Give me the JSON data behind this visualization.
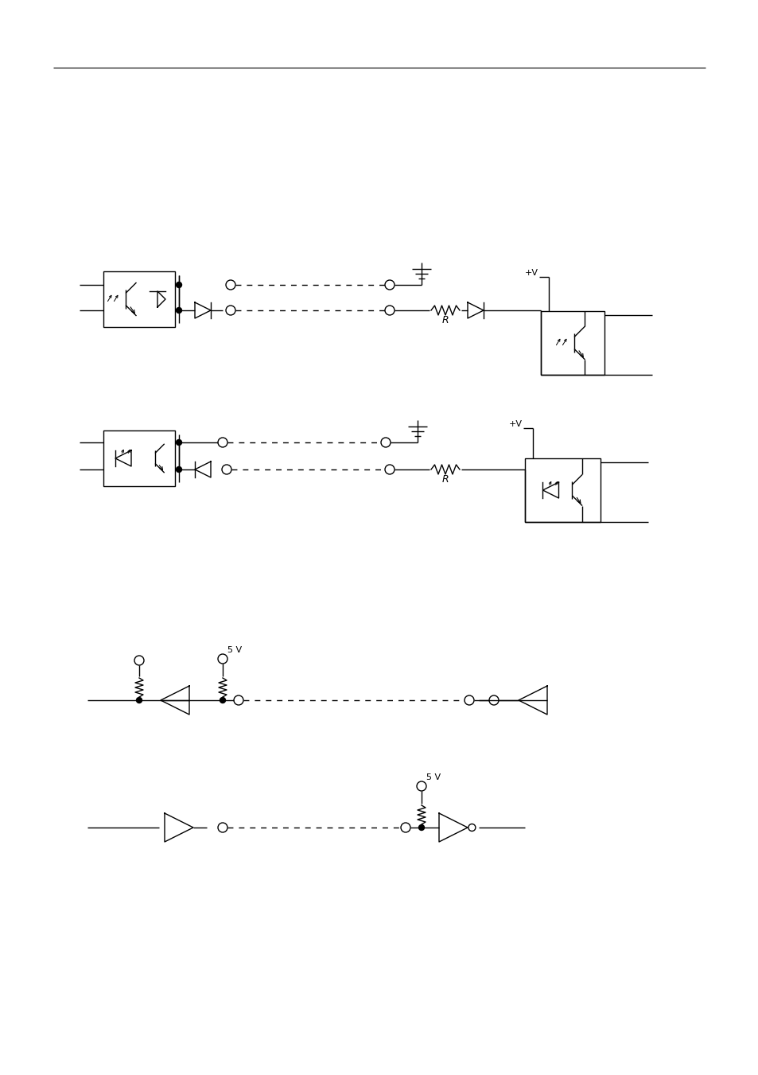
{
  "bg_color": "#ffffff",
  "line_color": "#000000",
  "lw": 1.0,
  "fig_width": 9.54,
  "fig_height": 13.51
}
